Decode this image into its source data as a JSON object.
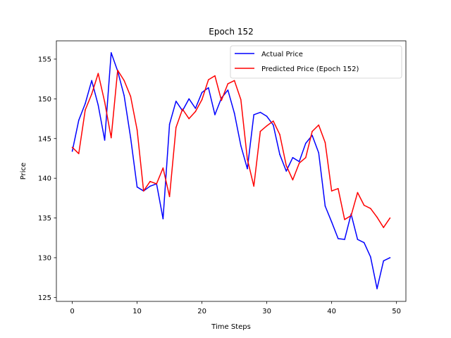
{
  "chart_data": {
    "type": "line",
    "title": "Epoch 152",
    "xlabel": "Time Steps",
    "ylabel": "Price",
    "xlim": [
      -2.45,
      51.45
    ],
    "ylim": [
      124.5,
      157.3
    ],
    "xticks": [
      0,
      10,
      20,
      30,
      40,
      50
    ],
    "yticks": [
      125,
      130,
      135,
      140,
      145,
      150,
      155
    ],
    "grid": false,
    "legend_position": "upper-right",
    "x": [
      0,
      1,
      2,
      3,
      4,
      5,
      6,
      7,
      8,
      9,
      10,
      11,
      12,
      13,
      14,
      15,
      16,
      17,
      18,
      19,
      20,
      21,
      22,
      23,
      24,
      25,
      26,
      27,
      28,
      29,
      30,
      31,
      32,
      33,
      34,
      35,
      36,
      37,
      38,
      39,
      40,
      41,
      42,
      43,
      44,
      45,
      46,
      47,
      48,
      49
    ],
    "series": [
      {
        "name": "Actual Price",
        "color": "#0000ff",
        "values": [
          143.4,
          147.3,
          149.4,
          152.3,
          149.2,
          144.8,
          155.8,
          153.5,
          150.4,
          145.1,
          138.9,
          138.4,
          139.0,
          139.3,
          134.9,
          146.8,
          149.7,
          148.5,
          150.0,
          148.8,
          150.8,
          151.4,
          148.0,
          150.1,
          151.1,
          148.2,
          144.1,
          141.2,
          148.0,
          148.3,
          147.8,
          146.7,
          143.0,
          140.9,
          142.6,
          142.1,
          144.4,
          145.4,
          143.2,
          136.5,
          134.5,
          132.4,
          132.3,
          135.5,
          132.3,
          131.9,
          130.1,
          126.1,
          129.6,
          130.0
        ]
      },
      {
        "name": "Predicted Price (Epoch 152)",
        "color": "#ff0000",
        "values": [
          143.9,
          143.1,
          148.6,
          150.6,
          153.2,
          149.6,
          145.1,
          153.6,
          152.3,
          150.3,
          146.1,
          138.4,
          139.6,
          139.3,
          141.3,
          137.7,
          146.4,
          148.7,
          147.5,
          148.4,
          149.9,
          152.4,
          152.9,
          149.8,
          151.9,
          152.3,
          149.9,
          142.4,
          139.0,
          145.9,
          146.6,
          147.2,
          145.5,
          141.6,
          139.8,
          141.9,
          142.6,
          145.9,
          146.7,
          144.5,
          138.4,
          138.7,
          134.8,
          135.3,
          138.2,
          136.6,
          136.2,
          135.1,
          133.8,
          135.0
        ]
      }
    ]
  }
}
